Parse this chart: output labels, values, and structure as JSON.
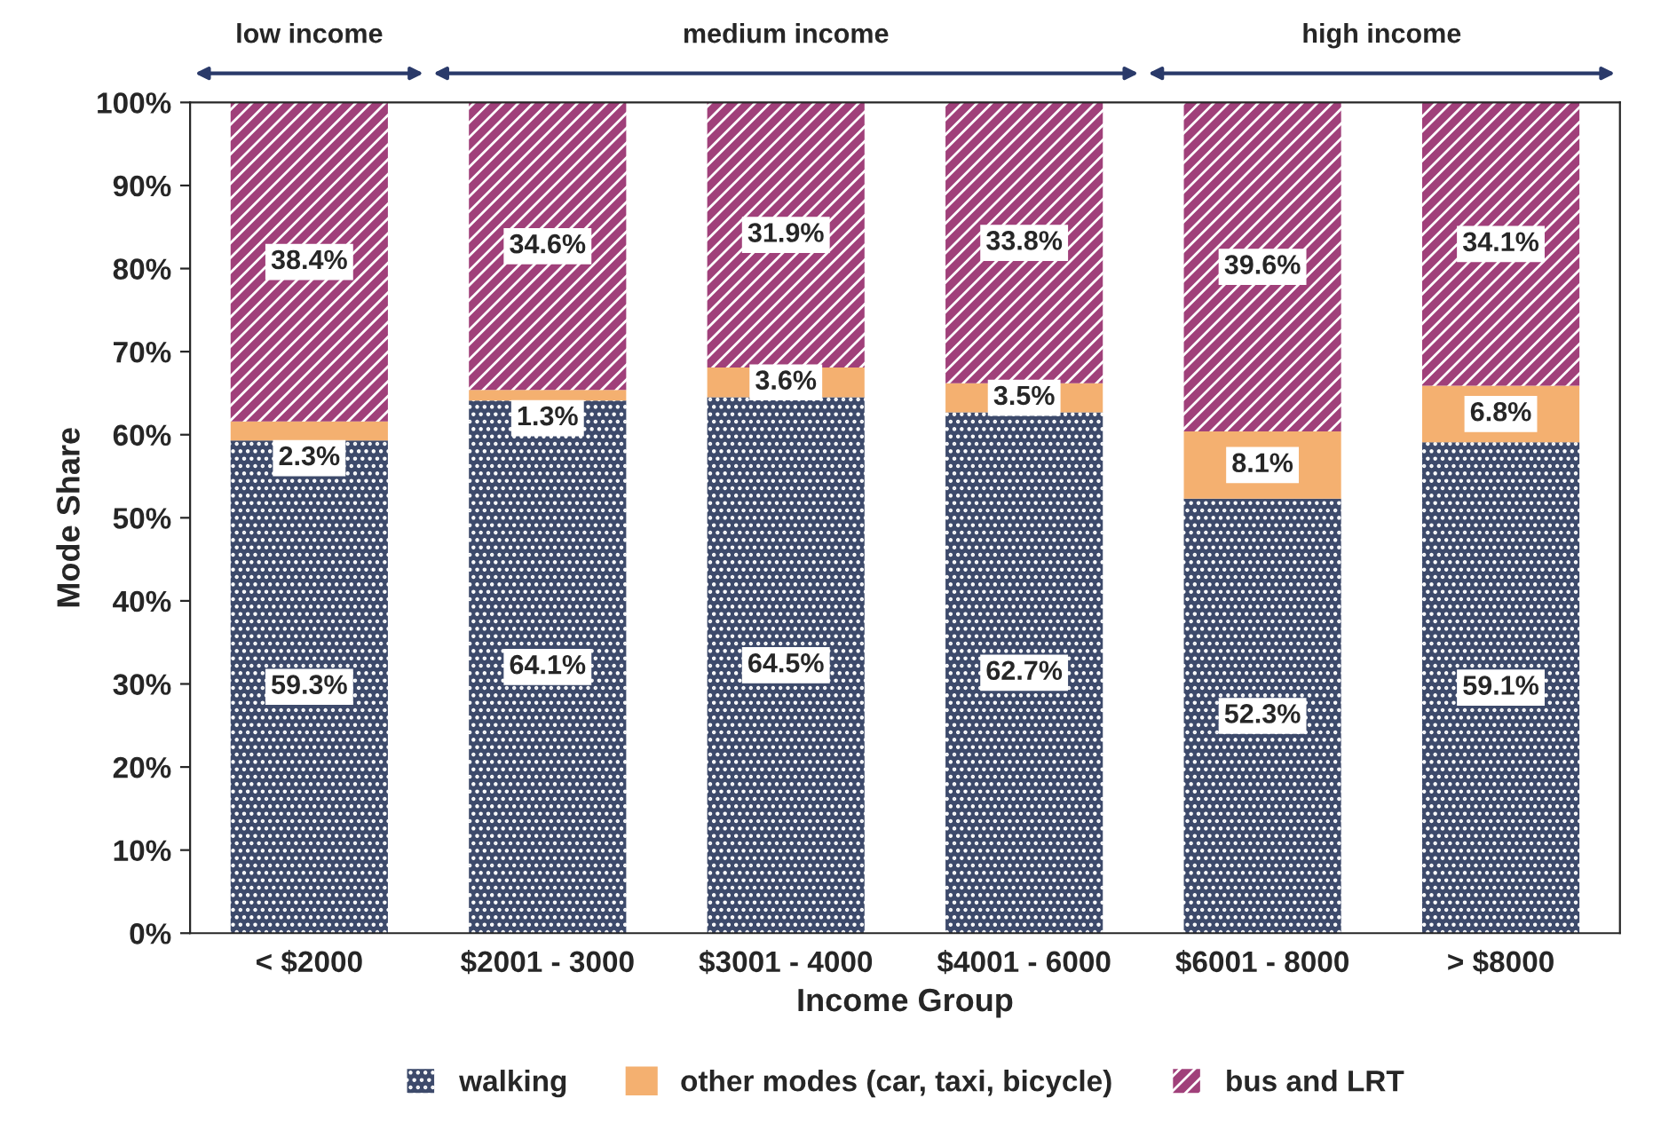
{
  "chart_data": {
    "type": "bar",
    "stacked": true,
    "xlabel": "Income Group",
    "ylabel": "Mode Share",
    "categories": [
      "< $2000",
      "$2001 - 3000",
      "$3001 - 4000",
      "$4001 - 6000",
      "$6001 - 8000",
      "> $8000"
    ],
    "series": [
      {
        "name": "walking",
        "color": "#3d4a6b",
        "values": [
          59.3,
          64.1,
          64.5,
          62.7,
          52.3,
          59.1
        ],
        "value_labels": [
          "59.3%",
          "64.1%",
          "64.5%",
          "62.7%",
          "52.3%",
          "59.1%"
        ]
      },
      {
        "name": "other modes (car, taxi, bicycle)",
        "color": "#f4b070",
        "values": [
          2.3,
          1.3,
          3.6,
          3.5,
          8.1,
          6.8
        ],
        "value_labels": [
          "2.3%",
          "1.3%",
          "3.6%",
          "3.5%",
          "8.1%",
          "6.8%"
        ]
      },
      {
        "name": "bus and LRT",
        "color": "#a0407a",
        "values": [
          38.4,
          34.6,
          31.9,
          33.8,
          39.6,
          34.1
        ],
        "value_labels": [
          "38.4%",
          "34.6%",
          "31.9%",
          "33.8%",
          "39.6%",
          "34.1%"
        ]
      }
    ],
    "ylim": [
      0,
      100
    ],
    "yticks": [
      {
        "value": 0,
        "label": "0%"
      },
      {
        "value": 10,
        "label": "10%"
      },
      {
        "value": 20,
        "label": "20%"
      },
      {
        "value": 30,
        "label": "30%"
      },
      {
        "value": 40,
        "label": "40%"
      },
      {
        "value": 50,
        "label": "50%"
      },
      {
        "value": 60,
        "label": "60%"
      },
      {
        "value": 70,
        "label": "70%"
      },
      {
        "value": 80,
        "label": "80%"
      },
      {
        "value": 90,
        "label": "90%"
      },
      {
        "value": 100,
        "label": "100%"
      }
    ],
    "annotations": [
      "low income",
      "medium income",
      "high income"
    ],
    "grid": false,
    "legend": "bottom"
  }
}
